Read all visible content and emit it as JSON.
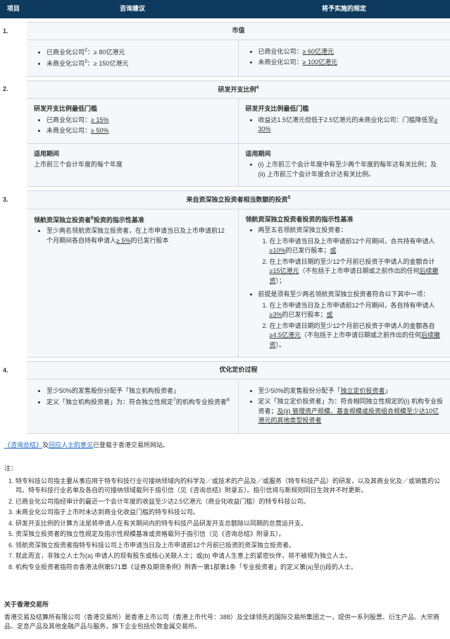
{
  "colors": {
    "header_bg": "#0d3a5e",
    "header_fg": "#ffffff",
    "cell_bg": "#f5f7fa",
    "border": "#d3d8de",
    "link": "#1f68c1"
  },
  "headers": {
    "c0": "项目",
    "c1": "咨询建议",
    "c2": "将予实施的规定"
  },
  "r1": {
    "num": "1.",
    "title": "市值",
    "left": [
      {
        "pre": "已商业化公司",
        "sup": "2",
        "post": "：≥ 80亿港元"
      },
      {
        "pre": "未商业化公司",
        "sup": "3",
        "post": "：≥ 150亿港元"
      }
    ],
    "right": [
      "已商业化公司：<span class='u'>≥ 60亿港元</span>",
      "未商业化公司：<span class='u'>≥ 100亿港元</span>"
    ]
  },
  "r2": {
    "num": "2.",
    "title": "研发开支比例",
    "title_sup": "4",
    "leftA_h": "研发开支比例最低门槛",
    "leftA": [
      "已商业化公司：<span class='u'>≥ 15%</span>",
      "未商业化公司：<span class='u'>≥ 50%</span>"
    ],
    "rightA_h": "研发开支比例最低门槛",
    "rightA": [
      "收益达1.5亿港元但低于2.5亿港元的未商业化公司：门槛降低至<span class='u'>≥ 30%</span>"
    ],
    "leftB_h": "适用期间",
    "leftB": "上市前三个会计年度的每个年度",
    "rightB_h": "适用期间",
    "rightB": [
      "(i) 上市前三个会计年度中有至少两个年度的每年达有关比例；及 (ii) 上市前三个会计年度合计达有关比例。"
    ]
  },
  "r3": {
    "num": "3.",
    "title": "来自资深独立投资者相当数额的投资",
    "title_sup": "5",
    "left_h_pre": "领航资深独立投资者",
    "left_h_sup": "6",
    "left_h_post": "投资的指示性基准",
    "left": [
      "至少两名领航资深独立投资者，在上市申请当日及上市申请前12个月期间各自持有申请人<span class='u'>≥ 5%</span>的已发行股本"
    ],
    "right_h": "领航资深独立投资者投资的指示性基准",
    "right_g1_h": "两至五名领航资深独立投资者：",
    "right_g1": [
      "在上市申请当日及上市申请前12个月期间，合共持有申请人<span class='u'>≥10%</span>的已发行股本；<span class='u'>或</span>",
      "在上市申请日期的至少12个月前已投资于申请人的金额合计<span class='u'>≥15亿港元</span>（不包括于上市申请日期或之前作出的任何<span class='u'>后续撤资</span>）；"
    ],
    "right_g2_h": "前提是须有至少两名领航资深独立投资者符合以下其中一项：",
    "right_g2": [
      "在上市申请当日及上市申请前12个月期间，各自持有申请人<span class='u'>≥3%</span>的已发行股本；<span class='u'>或</span>",
      "在上市申请日期的至少12个月前已投资于申请人的金额各自<span class='u'>≥4.5亿港元</span>（不包括于上市申请日期或之前作出的任何<span class='u'>后续撤资</span>）。"
    ]
  },
  "r4": {
    "num": "4.",
    "title": "优化定价过程",
    "left": [
      "至少50%的发售股份分配予「独立机构投资者」",
      "定义「独立机构投资者」为：符合独立性规定<sup>7</sup>的机构专业投资者<sup>8</sup>"
    ],
    "right": [
      "至少50%的发售股份分配予「<span class='u'>独立定价投资者</span>」",
      "定义「独立定价投资者」为：符合相同独立性规定的(i) 机构专业投资者；<span class='u'>及(ii) 管理资产规模、基金规模或投资组合规模至少达10亿港元的其他类型投资者</span>"
    ]
  },
  "closing": {
    "link1": "《咨询总结》",
    "mid": "及",
    "link2": "回应人士的意见",
    "tail": "已登载于香港交易所网站。"
  },
  "notes_h": "注：",
  "notes": [
    "特专科技公司指主要从事应用于特专科技行业可接纳领域内的科学及／或技术的产品及／或服务（特专科技产品）的研发，以及其商业化及／或销售的公司。特专科技行业名单及各自的可接纳领域载列于指引信（见《咨询总结》附录五）。指引信将与新规则同日生效并不时更新。",
    "已商业化公司指经审计的最近一个会计年度的收益至少达2.5亿港元（商业化收益门槛）的特专科技公司。",
    "未商业化公司指于上市时未达到商业化收益门槛的特专科技公司。",
    "研发开支比例的计算方法是将申请人在有关期间内的特专科技产品研发开支总额除以同期的总营运开支。",
    "资深独立投资者的独立性规定及指示性规模基准或资格载列于指引信（见《咨询总结》附录五）。",
    "领航资深独立投资者指特专科技公司上市申请当日及上市申请前12个月前已投资的资深独立投资者。",
    "就此而言，非独立人士为(a) 申请人的现有股东或核心关联人士；或(b) 申请人生意上的紧密伙伴，将不被视为独立人士。",
    "机构专业投资者指符合香港法例第571章《证券及期货条例》附表一第1部第1条「专业投资者」的定义第(a)至(i)段的人士。"
  ],
  "about_h": "关于香港交易所",
  "about_p": "香港交易及结算所有限公司（香港交易所）是香港上市公司（香港上市代号：388）及全球领先的国际交易所集团之一，提供一系列股票、衍生产品、大宗商品、定息产品及其他金融产品与服务，旗下企业包括伦敦金属交易所。"
}
